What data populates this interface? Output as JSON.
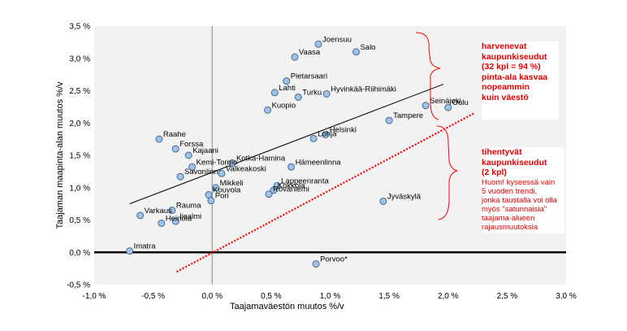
{
  "chart_data": {
    "type": "scatter",
    "title": "",
    "xlabel": "Taajamaväestön muutos %/v",
    "ylabel": "Taajaman maapinta-alan muutos %/v",
    "xlim": [
      -1.0,
      3.0
    ],
    "ylim": [
      -0.5,
      3.5
    ],
    "x_ticks": [
      "-1,0 %",
      "-0,5 %",
      "0,0 %",
      "0,5 %",
      "1,0 %",
      "1,5 %",
      "2,0 %",
      "2,5 %",
      "3,0 %"
    ],
    "y_ticks": [
      "-0,5 %",
      "0,0 %",
      "0,5 %",
      "1,0 %",
      "1,5 %",
      "2,0 %",
      "2,5 %",
      "3,0 %",
      "3,5 %"
    ],
    "points": [
      {
        "label": "Joensuu",
        "x": 0.9,
        "y": 3.22
      },
      {
        "label": "Salo",
        "x": 1.22,
        "y": 3.1
      },
      {
        "label": "Vaasa",
        "x": 0.7,
        "y": 3.02
      },
      {
        "label": "Pietarsaari",
        "x": 0.63,
        "y": 2.65
      },
      {
        "label": "Lahti",
        "x": 0.53,
        "y": 2.47
      },
      {
        "label": "Turku",
        "x": 0.73,
        "y": 2.4
      },
      {
        "label": "Hyvinkää-Riihimäki",
        "x": 0.97,
        "y": 2.45
      },
      {
        "label": "Kuopio",
        "x": 0.47,
        "y": 2.2
      },
      {
        "label": "Seinäjoki",
        "x": 1.81,
        "y": 2.27
      },
      {
        "label": "Oulu",
        "x": 2.0,
        "y": 2.24
      },
      {
        "label": "Tampere",
        "x": 1.5,
        "y": 2.04
      },
      {
        "label": "Helsinki",
        "x": 0.96,
        "y": 1.82
      },
      {
        "label": "Lohja",
        "x": 0.86,
        "y": 1.76
      },
      {
        "label": "Raahe",
        "x": -0.45,
        "y": 1.75
      },
      {
        "label": "Forssa",
        "x": -0.31,
        "y": 1.6
      },
      {
        "label": "Kajaani",
        "x": -0.2,
        "y": 1.5
      },
      {
        "label": "Kotka-Hamina",
        "x": 0.17,
        "y": 1.38
      },
      {
        "label": "Kemi-Tornio",
        "x": -0.17,
        "y": 1.32
      },
      {
        "label": "Hämeenlinna",
        "x": 0.67,
        "y": 1.32
      },
      {
        "label": "Savonlinna",
        "x": -0.27,
        "y": 1.17
      },
      {
        "label": "Valkeakoski",
        "x": 0.08,
        "y": 1.22
      },
      {
        "label": "Lappeenranta",
        "x": 0.55,
        "y": 1.03
      },
      {
        "label": "Mikkeli",
        "x": 0.03,
        "y": 1.0
      },
      {
        "label": "Kokkola",
        "x": 0.52,
        "y": 0.96
      },
      {
        "label": "Kouvola",
        "x": -0.03,
        "y": 0.89
      },
      {
        "label": "Rovaniemi",
        "x": 0.48,
        "y": 0.9
      },
      {
        "label": "Pori",
        "x": -0.01,
        "y": 0.8
      },
      {
        "label": "Jyväskylä",
        "x": 1.45,
        "y": 0.79
      },
      {
        "label": "Rauma",
        "x": -0.34,
        "y": 0.65
      },
      {
        "label": "Varkaus",
        "x": -0.61,
        "y": 0.57
      },
      {
        "label": "Iisalmi",
        "x": -0.31,
        "y": 0.48
      },
      {
        "label": "Heinola",
        "x": -0.43,
        "y": 0.45
      },
      {
        "label": "Imatra",
        "x": -0.7,
        "y": 0.02
      },
      {
        "label": "Porvoo*",
        "x": 0.88,
        "y": -0.18
      }
    ],
    "trend_line": {
      "x": [
        -0.7,
        1.96
      ],
      "y": [
        0.75,
        2.6
      ]
    },
    "equality_line": {
      "x": [
        -0.3,
        2.22
      ],
      "y": [
        -0.3,
        2.15
      ]
    },
    "grid": false,
    "legend": "none"
  },
  "annotations": {
    "sparse": {
      "lines": [
        "harvenevat",
        "kaupunkiseudut",
        "(32 kpl = 94 %)",
        "pinta-ala kasvaa",
        "nopeammin",
        "kuin väestö"
      ]
    },
    "dense": {
      "head_lines": [
        "tihentyvät",
        "kaupunkiseudut",
        "(2 kpl)"
      ],
      "note_lines": [
        "Huom! kyseessä vain",
        "5 vuoden trendi,",
        "jonka taustalla voi olla",
        "myös \"satunnaisia\"",
        "taajama-alueen",
        "rajausmuutoksia"
      ]
    }
  },
  "colors": {
    "plot_background": "#f2f2f2",
    "marker_fill": "#9ec3e6",
    "marker_stroke": "#4a6a94",
    "trend_line": "#000000",
    "equality_line": "#ff0000",
    "annotation_text": "#e10000",
    "brace": "#ff0000"
  }
}
